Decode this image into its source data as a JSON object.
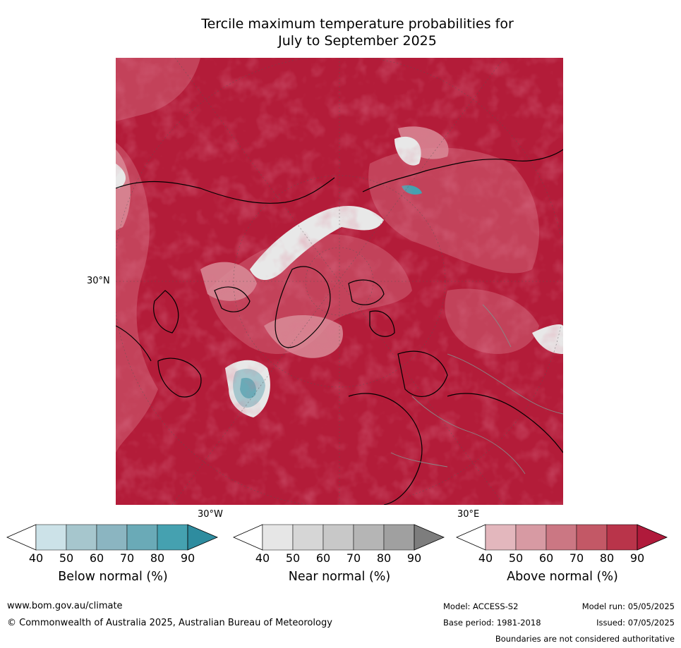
{
  "title": {
    "line1": "Tercile maximum temperature probabilities for",
    "line2": "July to September 2025"
  },
  "map": {
    "projection": "polar",
    "labels": {
      "lat_30n": "30°N",
      "lon_30w": "30°W",
      "lon_30e": "30°E"
    },
    "colors": {
      "dominant": "#b31c39",
      "ocean_light": "#c2415a",
      "near_normal": "#e0e0e0",
      "below_normal": "#4a9fb2"
    }
  },
  "colorbars": [
    {
      "name": "below-normal",
      "label": "Below normal (%)",
      "ticks": [
        "40",
        "50",
        "60",
        "70",
        "80",
        "90"
      ],
      "colors": [
        "#ffffff",
        "#cce2e8",
        "#a6c6cd",
        "#8bb5c1",
        "#6aaab7",
        "#45a1b0",
        "#2e8c9f"
      ]
    },
    {
      "name": "near-normal",
      "label": "Near normal (%)",
      "ticks": [
        "40",
        "50",
        "60",
        "70",
        "80",
        "90"
      ],
      "colors": [
        "#ffffff",
        "#e6e6e6",
        "#d6d6d6",
        "#c8c8c8",
        "#b5b5b5",
        "#a0a0a0",
        "#7d7d7d"
      ]
    },
    {
      "name": "above-normal",
      "label": "Above normal (%)",
      "ticks": [
        "40",
        "50",
        "60",
        "70",
        "80",
        "90"
      ],
      "colors": [
        "#ffffff",
        "#e3b7bd",
        "#d79aa3",
        "#cb7783",
        "#c35866",
        "#b9344a",
        "#b01a3b"
      ]
    }
  ],
  "footer": {
    "website": "www.bom.gov.au/climate",
    "copyright": "© Commonwealth of Australia 2025, Australian Bureau of Meteorology",
    "model": "Model: ACCESS-S2",
    "base_period": "Base period: 1981-2018",
    "model_run": "Model run: 05/05/2025",
    "issued": "Issued: 07/05/2025",
    "disclaimer": "Boundaries are not considered authoritative"
  }
}
